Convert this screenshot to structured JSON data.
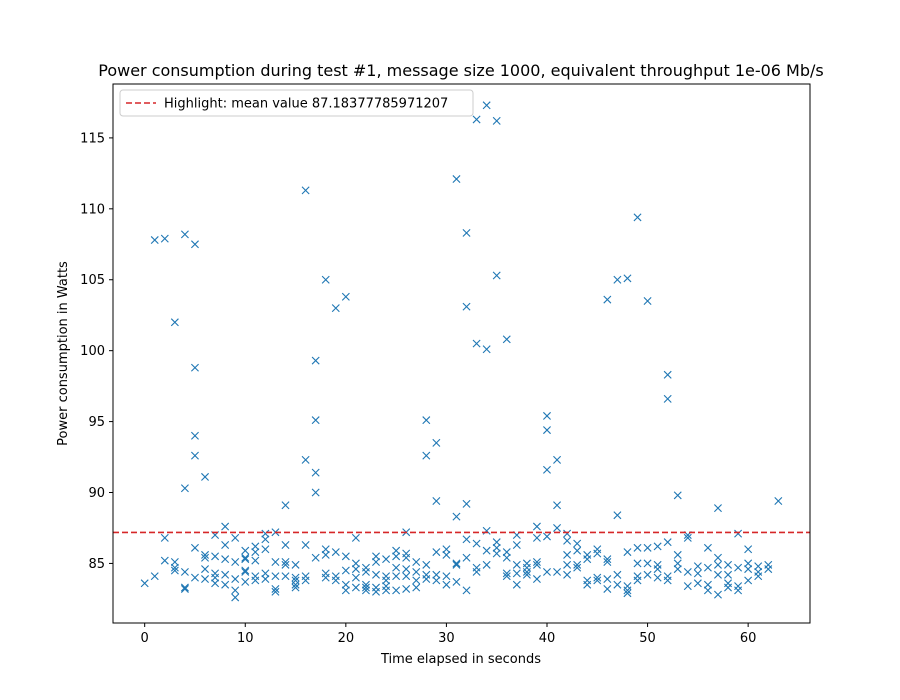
{
  "chart_data": {
    "type": "scatter",
    "title": "Power consumption during test #1, message size 1000, equivalent throughput 1e-06 Mb/s",
    "xlabel": "Time elapsed in seconds",
    "ylabel": "Power consumption in Watts",
    "xlim": [
      -3.15,
      66.15
    ],
    "ylim": [
      80.8,
      118.8
    ],
    "xticks": [
      0,
      10,
      20,
      30,
      40,
      50,
      60
    ],
    "yticks": [
      85,
      90,
      95,
      100,
      105,
      110,
      115
    ],
    "grid": false,
    "legend_position": "top-left",
    "marker": "x",
    "series_color": "#1f77b4",
    "mean_line": {
      "label": "Highlight: mean value 87.18377785971207",
      "value": 87.18377785971207,
      "color": "#d62728",
      "style": "dashed"
    },
    "series": [
      {
        "points": [
          [
            0,
            83.6
          ],
          [
            1,
            84.1
          ],
          [
            1,
            107.8
          ],
          [
            2,
            107.9
          ],
          [
            2,
            85.2
          ],
          [
            2,
            86.8
          ],
          [
            3,
            102.0
          ],
          [
            3,
            85.1
          ],
          [
            3,
            84.7
          ],
          [
            3,
            84.5
          ],
          [
            4,
            108.2
          ],
          [
            4,
            90.3
          ],
          [
            4,
            84.4
          ],
          [
            4,
            83.3
          ],
          [
            4,
            83.2
          ],
          [
            5,
            107.5
          ],
          [
            5,
            98.8
          ],
          [
            5,
            94.0
          ],
          [
            5,
            92.6
          ],
          [
            5,
            86.1
          ],
          [
            5,
            84.0
          ],
          [
            6,
            91.1
          ],
          [
            6,
            85.6
          ],
          [
            6,
            85.4
          ],
          [
            6,
            84.6
          ],
          [
            6,
            83.9
          ],
          [
            7,
            87.0
          ],
          [
            7,
            85.5
          ],
          [
            7,
            84.3
          ],
          [
            7,
            84.0
          ],
          [
            7,
            83.6
          ],
          [
            8,
            87.6
          ],
          [
            8,
            86.3
          ],
          [
            8,
            85.3
          ],
          [
            8,
            84.2
          ],
          [
            8,
            83.5
          ],
          [
            9,
            86.8
          ],
          [
            9,
            85.1
          ],
          [
            9,
            83.9
          ],
          [
            9,
            83.1
          ],
          [
            9,
            82.6
          ],
          [
            10,
            85.9
          ],
          [
            10,
            85.4
          ],
          [
            10,
            85.3
          ],
          [
            10,
            84.4
          ],
          [
            10,
            84.5
          ],
          [
            10,
            83.7
          ],
          [
            11,
            86.2
          ],
          [
            11,
            85.8
          ],
          [
            11,
            85.2
          ],
          [
            11,
            84.1
          ],
          [
            11,
            83.8
          ],
          [
            12,
            87.1
          ],
          [
            12,
            86.7
          ],
          [
            12,
            86.0
          ],
          [
            12,
            84.3
          ],
          [
            12,
            83.9
          ],
          [
            13,
            87.2
          ],
          [
            13,
            85.1
          ],
          [
            13,
            84.1
          ],
          [
            13,
            83.2
          ],
          [
            13,
            83.0
          ],
          [
            14,
            89.1
          ],
          [
            14,
            86.3
          ],
          [
            14,
            85.1
          ],
          [
            14,
            84.9
          ],
          [
            14,
            84.1
          ],
          [
            15,
            84.9
          ],
          [
            15,
            84.0
          ],
          [
            15,
            83.8
          ],
          [
            15,
            83.5
          ],
          [
            15,
            83.3
          ],
          [
            16,
            111.3
          ],
          [
            16,
            92.3
          ],
          [
            16,
            86.3
          ],
          [
            16,
            84.1
          ],
          [
            16,
            83.8
          ],
          [
            17,
            99.3
          ],
          [
            17,
            95.1
          ],
          [
            17,
            91.4
          ],
          [
            17,
            90.0
          ],
          [
            17,
            85.4
          ],
          [
            18,
            105.0
          ],
          [
            18,
            86.0
          ],
          [
            18,
            85.6
          ],
          [
            18,
            84.3
          ],
          [
            18,
            84.0
          ],
          [
            19,
            103.0
          ],
          [
            19,
            85.8
          ],
          [
            19,
            84.1
          ],
          [
            19,
            83.8
          ],
          [
            20,
            103.8
          ],
          [
            20,
            85.5
          ],
          [
            20,
            84.5
          ],
          [
            20,
            83.5
          ],
          [
            20,
            83.1
          ],
          [
            21,
            86.8
          ],
          [
            21,
            85.0
          ],
          [
            21,
            84.6
          ],
          [
            21,
            84.0
          ],
          [
            21,
            83.3
          ],
          [
            22,
            84.7
          ],
          [
            22,
            84.4
          ],
          [
            22,
            83.5
          ],
          [
            22,
            83.3
          ],
          [
            22,
            83.1
          ],
          [
            23,
            85.5
          ],
          [
            23,
            85.1
          ],
          [
            23,
            84.2
          ],
          [
            23,
            83.3
          ],
          [
            23,
            83.0
          ],
          [
            24,
            85.3
          ],
          [
            24,
            84.1
          ],
          [
            24,
            83.8
          ],
          [
            24,
            83.4
          ],
          [
            24,
            83.1
          ],
          [
            25,
            85.9
          ],
          [
            25,
            85.5
          ],
          [
            25,
            84.7
          ],
          [
            25,
            84.1
          ],
          [
            25,
            83.1
          ],
          [
            26,
            87.2
          ],
          [
            26,
            85.7
          ],
          [
            26,
            85.4
          ],
          [
            26,
            84.6
          ],
          [
            26,
            84.1
          ],
          [
            26,
            83.2
          ],
          [
            27,
            85.1
          ],
          [
            27,
            84.4
          ],
          [
            27,
            83.8
          ],
          [
            27,
            83.3
          ],
          [
            28,
            95.1
          ],
          [
            28,
            92.6
          ],
          [
            28,
            84.9
          ],
          [
            28,
            84.2
          ],
          [
            28,
            83.9
          ],
          [
            29,
            93.5
          ],
          [
            29,
            89.4
          ],
          [
            29,
            85.8
          ],
          [
            29,
            84.2
          ],
          [
            29,
            83.8
          ],
          [
            30,
            86.0
          ],
          [
            30,
            85.6
          ],
          [
            30,
            84.1
          ],
          [
            30,
            83.5
          ],
          [
            31,
            112.1
          ],
          [
            31,
            88.3
          ],
          [
            31,
            85.0
          ],
          [
            31,
            84.9
          ],
          [
            31,
            83.7
          ],
          [
            32,
            108.3
          ],
          [
            32,
            103.1
          ],
          [
            32,
            89.2
          ],
          [
            32,
            86.7
          ],
          [
            32,
            85.4
          ],
          [
            32,
            83.1
          ],
          [
            33,
            116.3
          ],
          [
            33,
            100.5
          ],
          [
            33,
            86.4
          ],
          [
            33,
            84.7
          ],
          [
            33,
            84.4
          ],
          [
            34,
            117.3
          ],
          [
            34,
            100.1
          ],
          [
            34,
            87.3
          ],
          [
            34,
            85.9
          ],
          [
            34,
            84.9
          ],
          [
            35,
            116.2
          ],
          [
            35,
            105.3
          ],
          [
            35,
            86.5
          ],
          [
            35,
            86.1
          ],
          [
            35,
            85.7
          ],
          [
            36,
            100.8
          ],
          [
            36,
            85.8
          ],
          [
            36,
            85.4
          ],
          [
            36,
            84.3
          ],
          [
            36,
            84.1
          ],
          [
            37,
            87.0
          ],
          [
            37,
            86.3
          ],
          [
            37,
            84.9
          ],
          [
            37,
            84.3
          ],
          [
            37,
            83.5
          ],
          [
            38,
            85.0
          ],
          [
            38,
            84.7
          ],
          [
            38,
            84.4
          ],
          [
            38,
            84.2
          ],
          [
            39,
            87.6
          ],
          [
            39,
            86.8
          ],
          [
            39,
            85.1
          ],
          [
            39,
            84.9
          ],
          [
            39,
            83.9
          ],
          [
            40,
            95.4
          ],
          [
            40,
            94.4
          ],
          [
            40,
            91.6
          ],
          [
            40,
            86.9
          ],
          [
            40,
            84.4
          ],
          [
            41,
            92.3
          ],
          [
            41,
            89.1
          ],
          [
            41,
            87.5
          ],
          [
            41,
            84.4
          ],
          [
            42,
            87.1
          ],
          [
            42,
            86.6
          ],
          [
            42,
            85.6
          ],
          [
            42,
            84.9
          ],
          [
            42,
            84.2
          ],
          [
            43,
            86.4
          ],
          [
            43,
            85.9
          ],
          [
            43,
            84.9
          ],
          [
            43,
            84.7
          ],
          [
            44,
            85.6
          ],
          [
            44,
            85.3
          ],
          [
            44,
            83.8
          ],
          [
            44,
            83.5
          ],
          [
            45,
            86.0
          ],
          [
            45,
            85.7
          ],
          [
            45,
            84.0
          ],
          [
            45,
            83.8
          ],
          [
            46,
            103.6
          ],
          [
            46,
            85.3
          ],
          [
            46,
            85.1
          ],
          [
            46,
            83.9
          ],
          [
            46,
            83.2
          ],
          [
            47,
            105.0
          ],
          [
            47,
            88.4
          ],
          [
            47,
            84.2
          ],
          [
            47,
            83.5
          ],
          [
            48,
            105.1
          ],
          [
            48,
            85.8
          ],
          [
            48,
            83.4
          ],
          [
            48,
            83.1
          ],
          [
            48,
            82.9
          ],
          [
            49,
            109.4
          ],
          [
            49,
            86.1
          ],
          [
            49,
            85.0
          ],
          [
            49,
            84.1
          ],
          [
            49,
            83.8
          ],
          [
            50,
            103.5
          ],
          [
            50,
            86.1
          ],
          [
            50,
            85.0
          ],
          [
            50,
            84.2
          ],
          [
            51,
            86.2
          ],
          [
            51,
            84.9
          ],
          [
            51,
            84.6
          ],
          [
            51,
            84.0
          ],
          [
            52,
            98.3
          ],
          [
            52,
            96.6
          ],
          [
            52,
            86.5
          ],
          [
            52,
            84.1
          ],
          [
            52,
            83.8
          ],
          [
            53,
            89.8
          ],
          [
            53,
            85.6
          ],
          [
            53,
            85.0
          ],
          [
            53,
            84.6
          ],
          [
            54,
            87.0
          ],
          [
            54,
            86.8
          ],
          [
            54,
            84.4
          ],
          [
            54,
            83.4
          ],
          [
            55,
            84.8
          ],
          [
            55,
            84.3
          ],
          [
            55,
            83.6
          ],
          [
            56,
            86.1
          ],
          [
            56,
            84.7
          ],
          [
            56,
            83.5
          ],
          [
            56,
            83.1
          ],
          [
            57,
            88.9
          ],
          [
            57,
            85.4
          ],
          [
            57,
            84.9
          ],
          [
            57,
            84.2
          ],
          [
            57,
            82.8
          ],
          [
            58,
            84.9
          ],
          [
            58,
            84.2
          ],
          [
            58,
            83.6
          ],
          [
            58,
            83.3
          ],
          [
            59,
            87.1
          ],
          [
            59,
            84.7
          ],
          [
            59,
            83.4
          ],
          [
            59,
            83.1
          ],
          [
            60,
            86.0
          ],
          [
            60,
            85.0
          ],
          [
            60,
            84.6
          ],
          [
            60,
            83.8
          ],
          [
            61,
            84.8
          ],
          [
            61,
            84.4
          ],
          [
            61,
            84.1
          ],
          [
            62,
            84.9
          ],
          [
            62,
            84.6
          ],
          [
            63,
            89.4
          ]
        ]
      }
    ]
  }
}
